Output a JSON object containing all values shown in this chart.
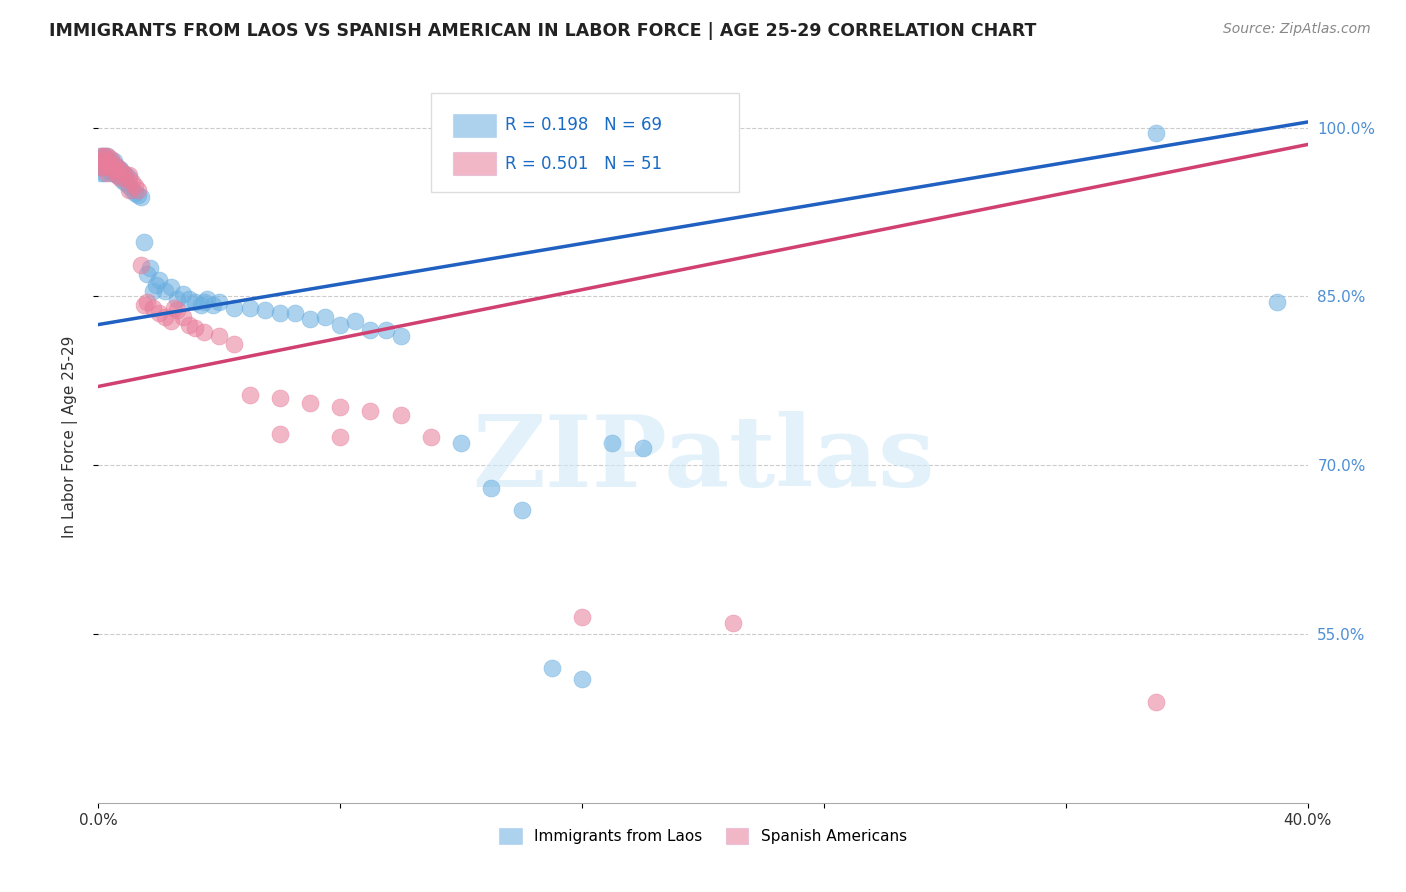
{
  "title": "IMMIGRANTS FROM LAOS VS SPANISH AMERICAN IN LABOR FORCE | AGE 25-29 CORRELATION CHART",
  "source": "Source: ZipAtlas.com",
  "ylabel": "In Labor Force | Age 25-29",
  "x_min": 0.0,
  "x_max": 0.4,
  "y_min": 0.4,
  "y_max": 1.05,
  "x_tick_positions": [
    0.0,
    0.08,
    0.16,
    0.24,
    0.32,
    0.4
  ],
  "x_tick_labels": [
    "0.0%",
    "",
    "",
    "",
    "",
    "40.0%"
  ],
  "y_tick_positions": [
    0.55,
    0.7,
    0.85,
    1.0
  ],
  "y_tick_labels": [
    "55.0%",
    "70.0%",
    "85.0%",
    "100.0%"
  ],
  "blue_R": 0.198,
  "blue_N": 69,
  "pink_R": 0.501,
  "pink_N": 51,
  "blue_color": "#6aaee0",
  "pink_color": "#e87d9a",
  "blue_line_color": "#2060c0",
  "pink_line_color": "#d04070",
  "blue_label": "Immigrants from Laos",
  "pink_label": "Spanish Americans",
  "watermark": "ZIPatlas",
  "blue_line_x0": 0.0,
  "blue_line_y0": 0.825,
  "blue_line_x1": 0.4,
  "blue_line_y1": 1.005,
  "pink_line_x0": 0.0,
  "pink_line_y0": 0.77,
  "pink_line_x1": 0.4,
  "pink_line_y1": 0.985,
  "blue_x": [
    0.001,
    0.001,
    0.001,
    0.001,
    0.002,
    0.002,
    0.002,
    0.002,
    0.003,
    0.003,
    0.003,
    0.004,
    0.004,
    0.004,
    0.005,
    0.005,
    0.005,
    0.006,
    0.006,
    0.007,
    0.007,
    0.008,
    0.008,
    0.009,
    0.009,
    0.01,
    0.01,
    0.011,
    0.012,
    0.013,
    0.014,
    0.015,
    0.016,
    0.017,
    0.018,
    0.019,
    0.02,
    0.022,
    0.024,
    0.026,
    0.028,
    0.03,
    0.032,
    0.034,
    0.036,
    0.038,
    0.04,
    0.05,
    0.06,
    0.07,
    0.08,
    0.09,
    0.1,
    0.12,
    0.13,
    0.14,
    0.15,
    0.16,
    0.17,
    0.18,
    0.035,
    0.045,
    0.055,
    0.065,
    0.075,
    0.085,
    0.095,
    0.35,
    0.39
  ],
  "blue_y": [
    0.975,
    0.97,
    0.965,
    0.96,
    0.975,
    0.97,
    0.965,
    0.96,
    0.975,
    0.97,
    0.965,
    0.97,
    0.965,
    0.96,
    0.97,
    0.965,
    0.96,
    0.965,
    0.958,
    0.963,
    0.956,
    0.96,
    0.953,
    0.958,
    0.951,
    0.955,
    0.948,
    0.945,
    0.942,
    0.94,
    0.938,
    0.898,
    0.87,
    0.875,
    0.855,
    0.86,
    0.865,
    0.855,
    0.858,
    0.848,
    0.852,
    0.848,
    0.845,
    0.842,
    0.848,
    0.842,
    0.845,
    0.84,
    0.835,
    0.83,
    0.825,
    0.82,
    0.815,
    0.72,
    0.68,
    0.66,
    0.52,
    0.51,
    0.72,
    0.715,
    0.845,
    0.84,
    0.838,
    0.835,
    0.832,
    0.828,
    0.82,
    0.995,
    0.845
  ],
  "pink_x": [
    0.001,
    0.001,
    0.001,
    0.002,
    0.002,
    0.002,
    0.003,
    0.003,
    0.003,
    0.004,
    0.004,
    0.005,
    0.005,
    0.006,
    0.006,
    0.007,
    0.007,
    0.008,
    0.009,
    0.01,
    0.01,
    0.011,
    0.012,
    0.013,
    0.014,
    0.015,
    0.016,
    0.018,
    0.02,
    0.022,
    0.024,
    0.026,
    0.028,
    0.03,
    0.032,
    0.025,
    0.035,
    0.04,
    0.045,
    0.05,
    0.06,
    0.07,
    0.08,
    0.09,
    0.1,
    0.06,
    0.08,
    0.16,
    0.21,
    0.11,
    0.35
  ],
  "pink_y": [
    0.975,
    0.97,
    0.965,
    0.975,
    0.97,
    0.965,
    0.975,
    0.968,
    0.96,
    0.972,
    0.965,
    0.968,
    0.962,
    0.965,
    0.958,
    0.962,
    0.955,
    0.96,
    0.955,
    0.958,
    0.945,
    0.952,
    0.948,
    0.945,
    0.878,
    0.842,
    0.845,
    0.84,
    0.835,
    0.832,
    0.828,
    0.838,
    0.832,
    0.825,
    0.822,
    0.84,
    0.818,
    0.815,
    0.808,
    0.762,
    0.76,
    0.755,
    0.752,
    0.748,
    0.745,
    0.728,
    0.725,
    0.565,
    0.56,
    0.725,
    0.49
  ]
}
